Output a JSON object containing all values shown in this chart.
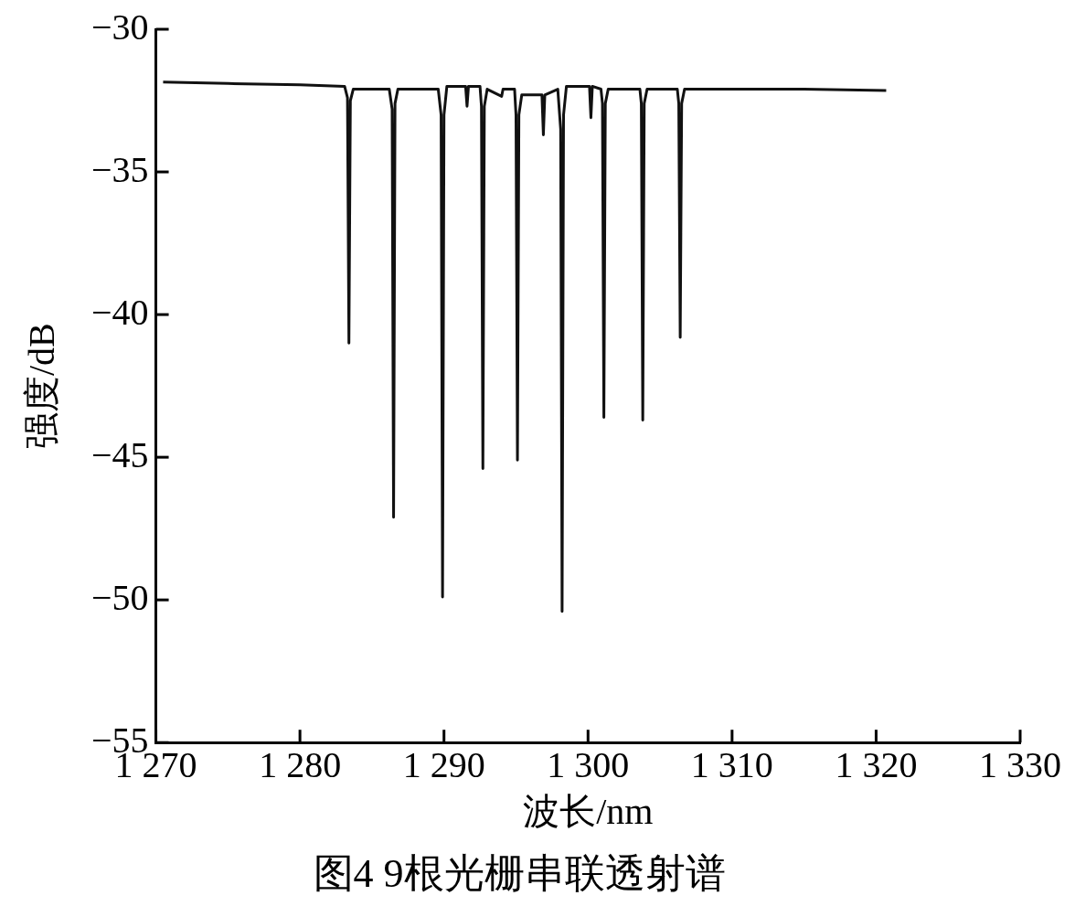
{
  "chart_data": {
    "type": "line",
    "title": "图4 9根光栅串联透射谱",
    "xlabel": "波长/nm",
    "ylabel": "强度/dB",
    "xlim": [
      1270,
      1330
    ],
    "ylim": [
      -55,
      -30
    ],
    "xticks": [
      {
        "value": 1270,
        "label": "1 270"
      },
      {
        "value": 1280,
        "label": "1 280"
      },
      {
        "value": 1290,
        "label": "1 290"
      },
      {
        "value": 1300,
        "label": "1 300"
      },
      {
        "value": 1310,
        "label": "1 310"
      },
      {
        "value": 1320,
        "label": "1 320"
      },
      {
        "value": 1330,
        "label": "1 330"
      }
    ],
    "yticks": [
      -30,
      -35,
      -40,
      -45,
      -50,
      -55
    ],
    "grid": false,
    "legend": false,
    "marker": "none",
    "line_style": "solid",
    "series": [
      {
        "color": "#111111",
        "x": [
          1270.5,
          1275,
          1280,
          1283.1,
          1283.3,
          1283.4,
          1283.5,
          1283.7,
          1286.2,
          1286.4,
          1286.5,
          1286.6,
          1286.8,
          1289.6,
          1289.8,
          1289.9,
          1290.0,
          1290.2,
          1291.5,
          1291.6,
          1291.7,
          1292.5,
          1292.6,
          1292.7,
          1292.8,
          1293.0,
          1294.0,
          1294.1,
          1294.9,
          1295.0,
          1295.1,
          1295.2,
          1295.4,
          1296.8,
          1296.9,
          1297.0,
          1297.9,
          1298.1,
          1298.2,
          1298.3,
          1298.5,
          1300.1,
          1300.2,
          1300.3,
          1300.9,
          1301.0,
          1301.1,
          1301.2,
          1301.4,
          1303.6,
          1303.7,
          1303.8,
          1303.9,
          1304.1,
          1306.2,
          1306.3,
          1306.4,
          1306.5,
          1306.7,
          1310,
          1315,
          1320.7
        ],
        "values": [
          -31.85,
          -31.9,
          -31.95,
          -32.0,
          -32.4,
          -41.0,
          -32.5,
          -32.1,
          -32.1,
          -32.8,
          -47.1,
          -32.6,
          -32.1,
          -32.1,
          -33.0,
          -49.9,
          -33.0,
          -32.0,
          -32.0,
          -32.7,
          -32.0,
          -32.0,
          -32.7,
          -45.4,
          -32.7,
          -32.1,
          -32.35,
          -32.1,
          -32.1,
          -33.0,
          -45.1,
          -33.0,
          -32.3,
          -32.3,
          -33.7,
          -32.3,
          -32.1,
          -33.5,
          -50.4,
          -33.0,
          -32.0,
          -32.0,
          -33.1,
          -32.0,
          -32.1,
          -32.6,
          -43.6,
          -32.6,
          -32.1,
          -32.1,
          -32.6,
          -43.7,
          -32.6,
          -32.1,
          -32.1,
          -32.6,
          -40.8,
          -32.6,
          -32.1,
          -32.1,
          -32.1,
          -32.15
        ]
      }
    ]
  }
}
